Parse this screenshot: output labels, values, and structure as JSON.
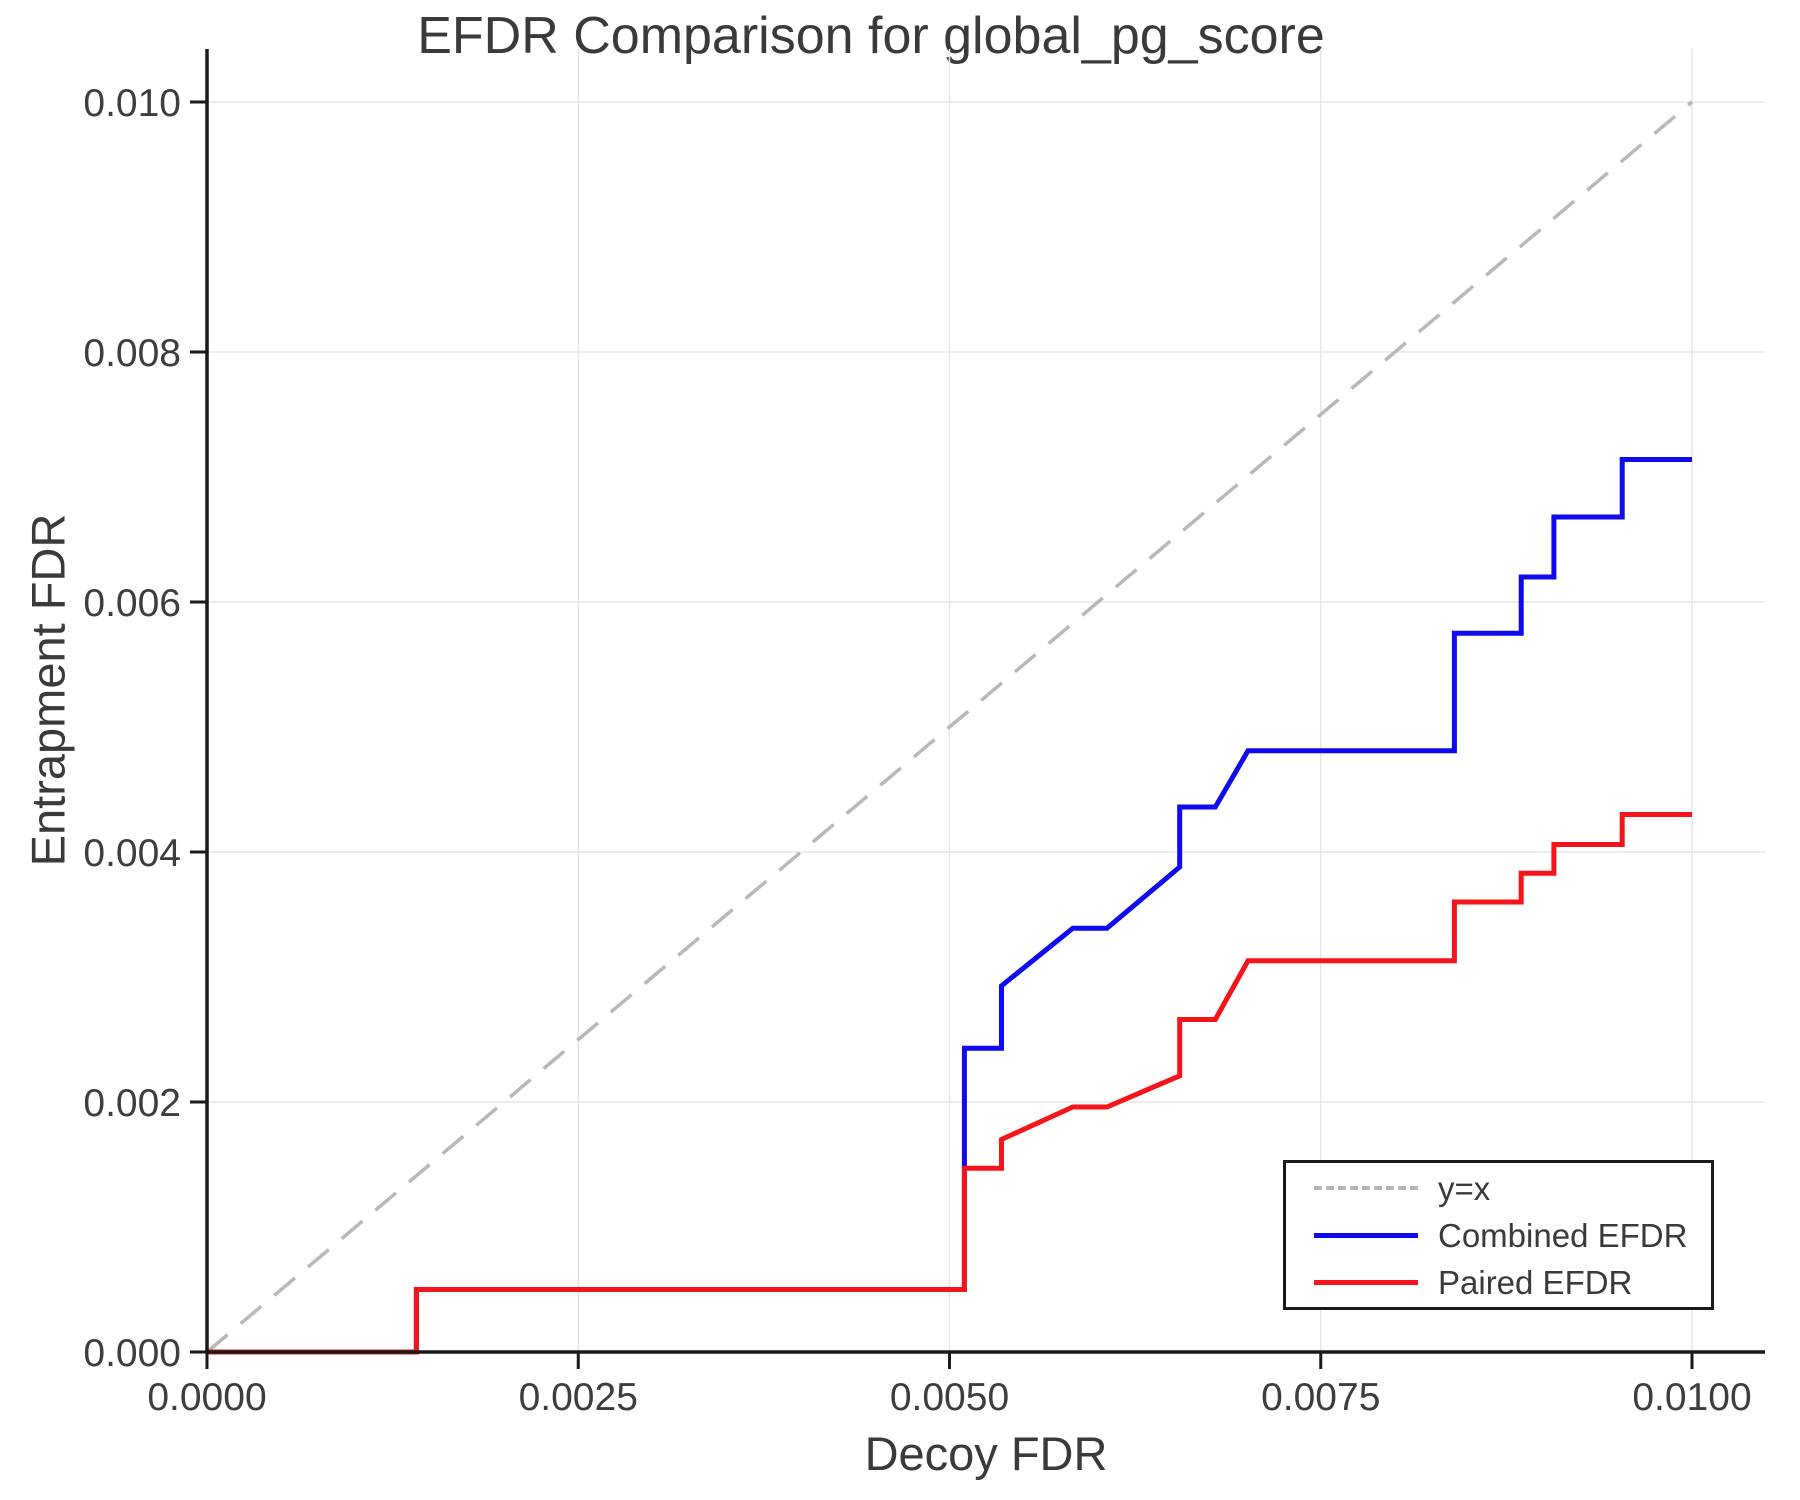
{
  "title": "EFDR Comparison for global_pg_score",
  "chart_data": {
    "type": "line",
    "title": "EFDR Comparison for global_pg_score",
    "xlabel": "Decoy FDR",
    "ylabel": "Entrapment FDR",
    "xlim": [
      0.0,
      0.0105
    ],
    "ylim": [
      0.0,
      0.01042
    ],
    "grid": true,
    "x_ticks": [
      0.0,
      0.0025,
      0.005,
      0.0075,
      0.01
    ],
    "x_tick_labels": [
      "0.0000",
      "0.0025",
      "0.0050",
      "0.0075",
      "0.0100"
    ],
    "y_ticks": [
      0.0,
      0.002,
      0.004,
      0.006,
      0.008,
      0.01
    ],
    "y_tick_labels": [
      "0.000",
      "0.002",
      "0.004",
      "0.006",
      "0.008",
      "0.010"
    ],
    "legend_position": "lower right",
    "series": [
      {
        "name": "y=x",
        "style": "dashed",
        "color": "#b8b8b8",
        "points": [
          [
            0.0,
            0.0
          ],
          [
            0.01,
            0.01
          ]
        ]
      },
      {
        "name": "Combined EFDR",
        "style": "solid",
        "color": "#0f0af0",
        "points": [
          [
            0.0,
            0.0
          ],
          [
            0.00141,
            0.0
          ],
          [
            0.00141,
            0.0005
          ],
          [
            0.0051,
            0.0005
          ],
          [
            0.0051,
            0.00243
          ],
          [
            0.00535,
            0.00243
          ],
          [
            0.00535,
            0.00293
          ],
          [
            0.00583,
            0.00339
          ],
          [
            0.00606,
            0.00339
          ],
          [
            0.00655,
            0.00388
          ],
          [
            0.00655,
            0.00436
          ],
          [
            0.00679,
            0.00436
          ],
          [
            0.00701,
            0.00481
          ],
          [
            0.0084,
            0.00481
          ],
          [
            0.0084,
            0.00575
          ],
          [
            0.00885,
            0.00575
          ],
          [
            0.00885,
            0.0062
          ],
          [
            0.00907,
            0.0062
          ],
          [
            0.00907,
            0.00668
          ],
          [
            0.00953,
            0.00668
          ],
          [
            0.00953,
            0.00714
          ],
          [
            0.01,
            0.00714
          ]
        ]
      },
      {
        "name": "Paired EFDR",
        "style": "solid",
        "color": "#f51419",
        "points": [
          [
            0.0,
            0.0
          ],
          [
            0.00141,
            0.0
          ],
          [
            0.00141,
            0.0005
          ],
          [
            0.0051,
            0.0005
          ],
          [
            0.0051,
            0.00147
          ],
          [
            0.00535,
            0.00147
          ],
          [
            0.00535,
            0.0017
          ],
          [
            0.00583,
            0.00196
          ],
          [
            0.00606,
            0.00196
          ],
          [
            0.00655,
            0.00221
          ],
          [
            0.00655,
            0.00266
          ],
          [
            0.00679,
            0.00266
          ],
          [
            0.00701,
            0.00313
          ],
          [
            0.0084,
            0.00313
          ],
          [
            0.0084,
            0.0036
          ],
          [
            0.00885,
            0.0036
          ],
          [
            0.00885,
            0.00383
          ],
          [
            0.00907,
            0.00383
          ],
          [
            0.00907,
            0.00406
          ],
          [
            0.00953,
            0.00406
          ],
          [
            0.00953,
            0.0043
          ],
          [
            0.01,
            0.0043
          ]
        ]
      }
    ]
  },
  "colors": {
    "background": "#ffffff",
    "spine": "#1a1a1a",
    "grid": "#e7e7e7",
    "text": "#3a3a3a",
    "tick_text": "#3d3d3d",
    "combined": "#0f0af0",
    "paired": "#f51419",
    "identity": "#b8b8b8"
  }
}
